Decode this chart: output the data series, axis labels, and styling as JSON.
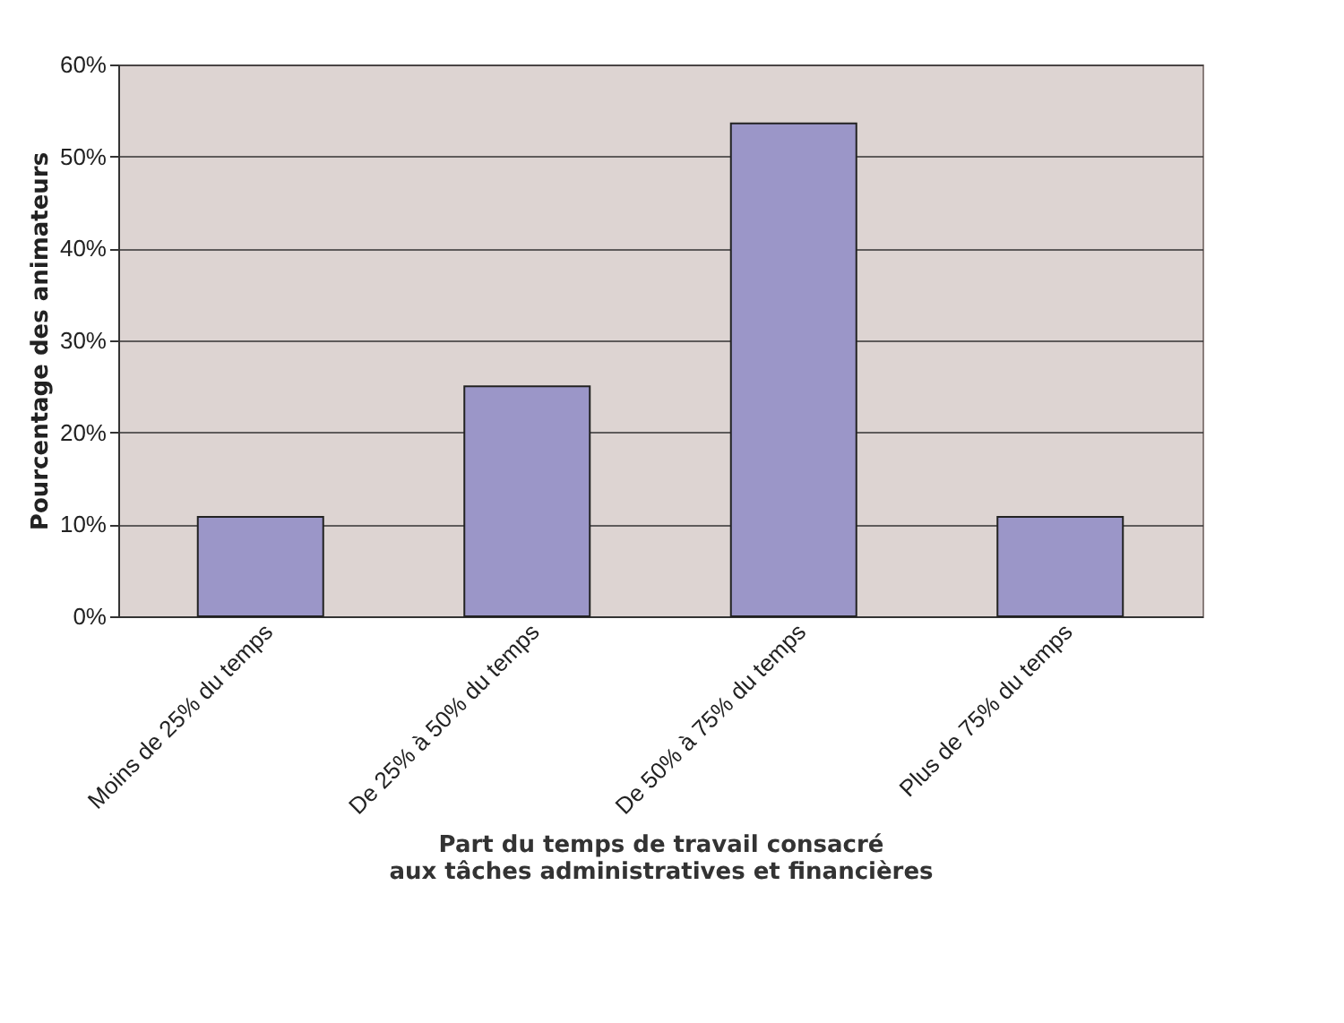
{
  "chart_data": {
    "type": "bar",
    "xlabel": "Part du temps de travail consacré\naux tâches administratives et financières",
    "ylabel": "Pourcentage des animateurs",
    "categories": [
      "Moins de 25% du temps",
      "De 25% à 50% du temps",
      "De 50% à 75% du temps",
      "Plus de 75% du temps"
    ],
    "values": [
      10.8,
      25,
      53.6,
      10.8
    ],
    "color": "#9b96c8",
    "ylim": [
      0,
      60
    ],
    "yticks": [
      {
        "value": 0,
        "label": "0%"
      },
      {
        "value": 10,
        "label": "10%"
      },
      {
        "value": 20,
        "label": "20%"
      },
      {
        "value": 30,
        "label": "30%"
      },
      {
        "value": 40,
        "label": "40%"
      },
      {
        "value": 50,
        "label": "50%"
      },
      {
        "value": 60,
        "label": "60%"
      }
    ],
    "grid": "y"
  }
}
